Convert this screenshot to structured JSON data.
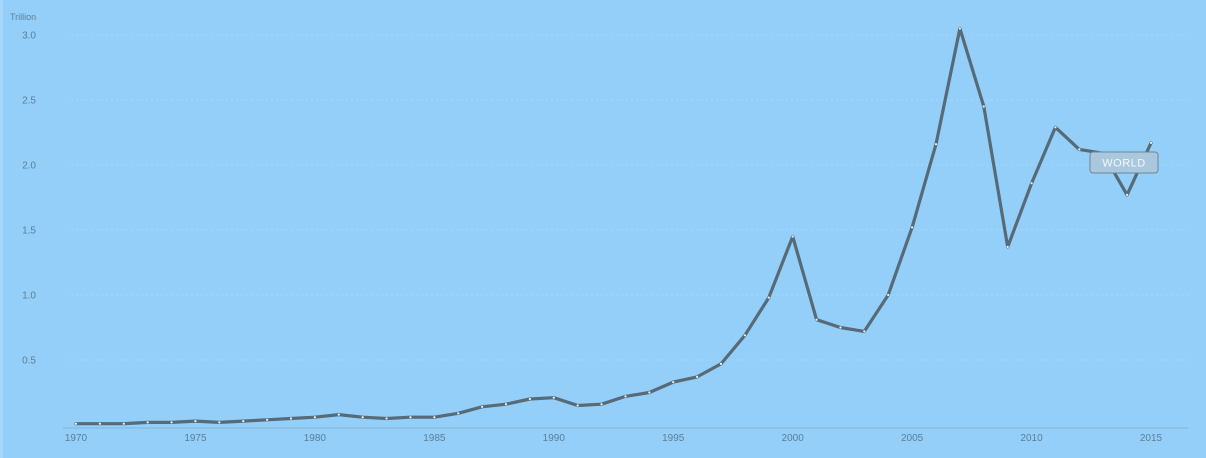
{
  "chart_data": {
    "type": "line",
    "title": "",
    "ylabel": "Trillion",
    "xlabel": "",
    "ylim": [
      0,
      3.1
    ],
    "xlim": [
      1970,
      2015
    ],
    "grid": true,
    "y_ticks": [
      0.5,
      1.0,
      1.5,
      2.0,
      2.5,
      3.0
    ],
    "y_tick_labels": [
      "0.5",
      "1.0",
      "1.5",
      "2.0",
      "2.5",
      "3.0"
    ],
    "x_ticks": [
      1970,
      1975,
      1980,
      1985,
      1990,
      1995,
      2000,
      2005,
      2010,
      2015
    ],
    "x_tick_labels": [
      "1970",
      "1975",
      "1980",
      "1985",
      "1990",
      "1995",
      "2000",
      "2005",
      "2010",
      "2015"
    ],
    "series": [
      {
        "name": "WORLD",
        "color": "#566a78",
        "x": [
          1970,
          1971,
          1972,
          1973,
          1974,
          1975,
          1976,
          1977,
          1978,
          1979,
          1980,
          1981,
          1982,
          1983,
          1984,
          1985,
          1986,
          1987,
          1988,
          1989,
          1990,
          1991,
          1992,
          1993,
          1994,
          1995,
          1996,
          1997,
          1998,
          1999,
          2000,
          2001,
          2002,
          2003,
          2004,
          2005,
          2006,
          2007,
          2008,
          2009,
          2010,
          2011,
          2012,
          2013,
          2014,
          2015
        ],
        "values": [
          0.01,
          0.01,
          0.01,
          0.02,
          0.02,
          0.03,
          0.02,
          0.03,
          0.04,
          0.05,
          0.06,
          0.08,
          0.06,
          0.05,
          0.06,
          0.06,
          0.09,
          0.14,
          0.16,
          0.2,
          0.21,
          0.15,
          0.16,
          0.22,
          0.25,
          0.33,
          0.37,
          0.47,
          0.69,
          0.98,
          1.45,
          0.81,
          0.75,
          0.72,
          1.0,
          1.52,
          2.16,
          3.05,
          2.45,
          1.37,
          1.86,
          2.29,
          2.12,
          2.09,
          1.77,
          2.17
        ]
      }
    ],
    "legend": {
      "label": "WORLD",
      "placement": "end-of-line"
    }
  }
}
